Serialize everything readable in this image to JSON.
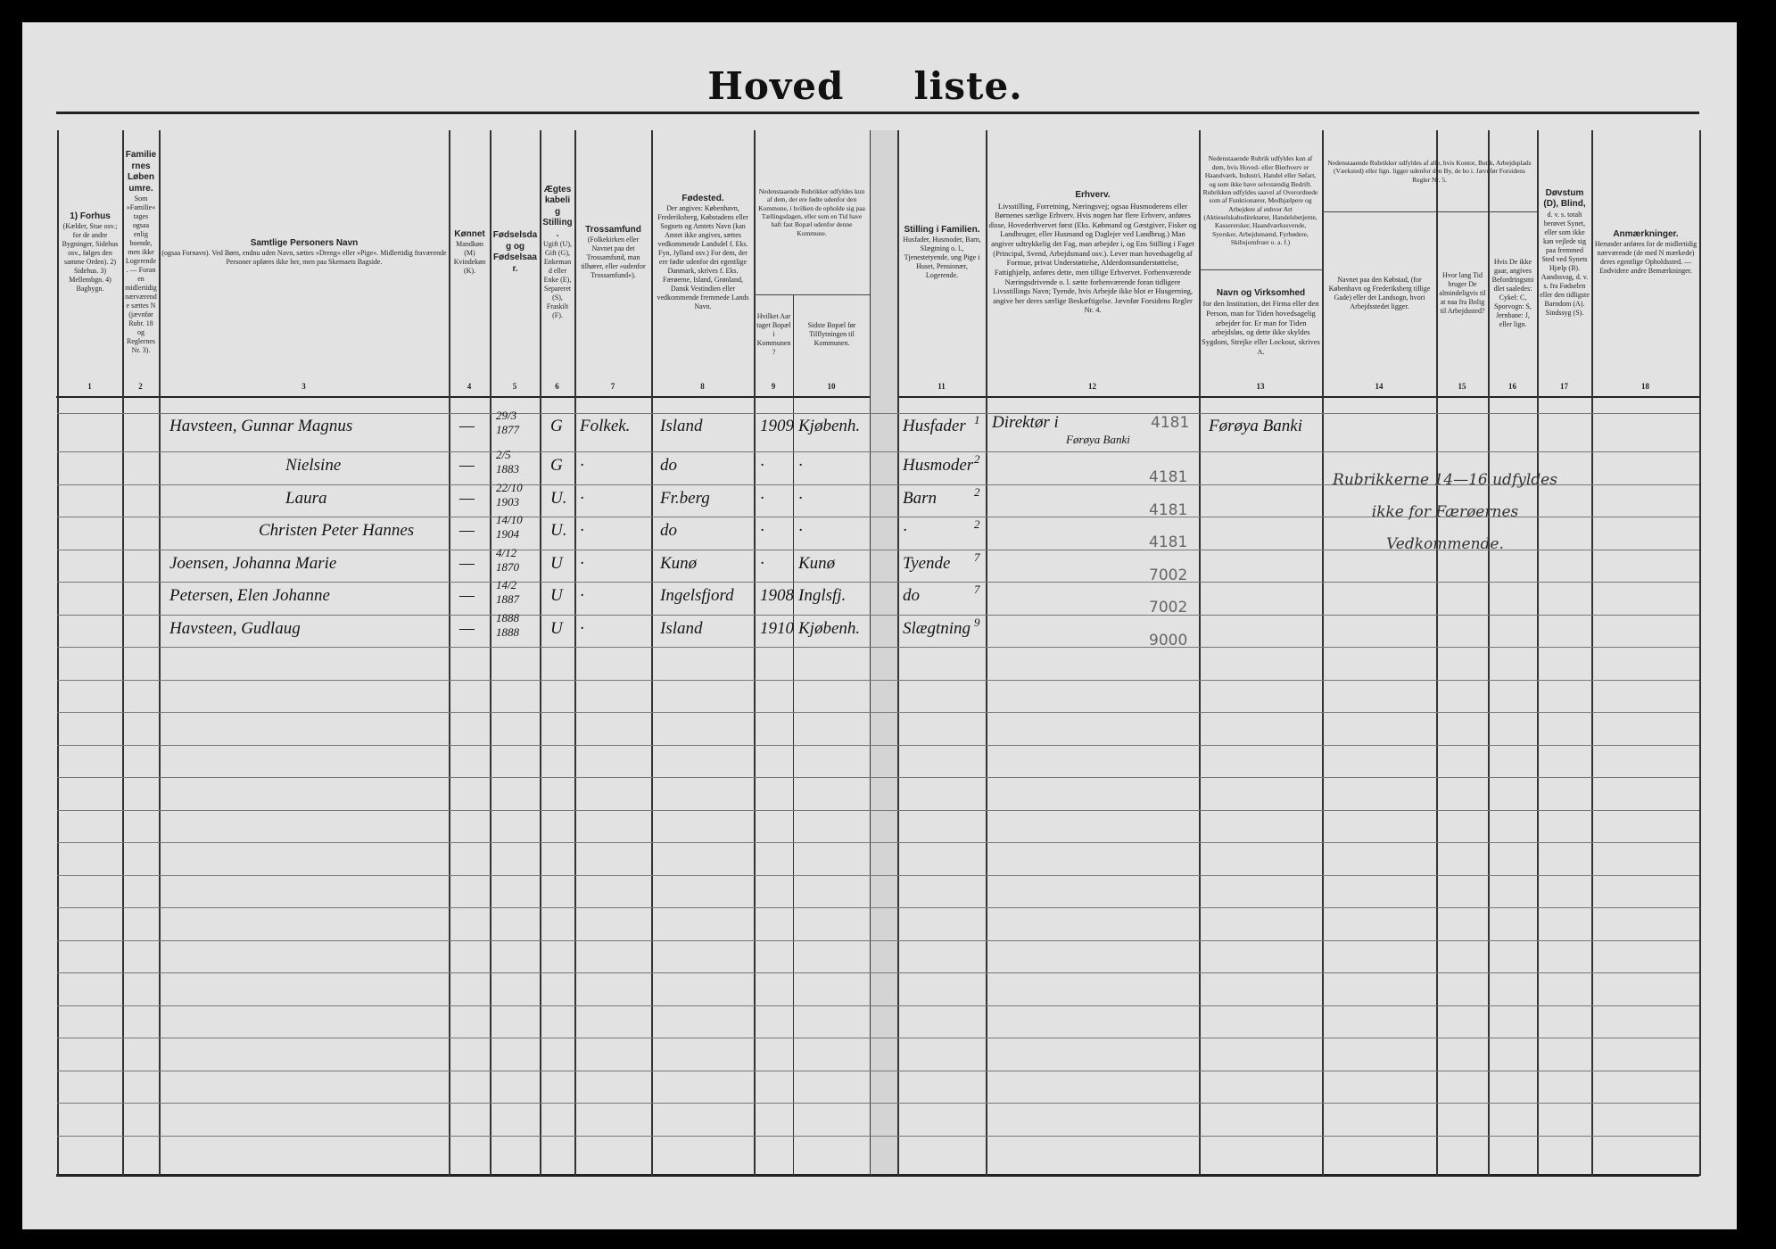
{
  "title": "Hoved     liste.",
  "headers": [
    {
      "n": "1",
      "t": "1) Forhus",
      "s": "(Kælder, Stue osv.; for de andre Bygninger, Sidehus osv., følges den samme Orden). 2) Sidehus. 3) Mellembgn. 4) Bagbygn."
    },
    {
      "n": "2",
      "t": "Familiernes Løbenumre.",
      "s": "Som »Familie« tages ogsaa enlig boende, men ikke Logerende. — Foran en midlertidig nærværende sættes N (jævnfør Rubr. 18 og Reglernes Nr. 3)."
    },
    {
      "n": "3",
      "t": "Samtlige Personers Navn",
      "s": "(ogsaa Fornavn). Ved Børn, endnu uden Navn, sættes »Dreng« eller »Pige«. Midlertidig fraværende Personer opføres ikke her, men paa Skemaets Bagside."
    },
    {
      "n": "4",
      "t": "Kønnet",
      "s": "Mandkøn (M) Kvindekøn (K)."
    },
    {
      "n": "5",
      "t": "Fødselsdag og Fødselsaar.",
      "s": ""
    },
    {
      "n": "6",
      "t": "Ægteskabelig Stilling.",
      "s": "Ugift (U), Gift (G), Enkemand eller Enke (E), Separeret (S), Fraskilt (F)."
    },
    {
      "n": "7",
      "t": "Trossamfund",
      "s": "(Folkekirken eller Navnet paa det Trossamfund, man tilhører, eller »udenfor Trossamfund«)."
    },
    {
      "n": "8",
      "t": "Fødested.",
      "s": "Der angives: København, Frederiksberg, Købstadens eller Sognets og Amtets Navn (kan Amtet ikke angives, sættes vedkommende Landsdel f. Eks. Fyn, Jylland osv.) For dem, der ere fødte udenfor det egentlige Danmark, skrives f. Eks. Færøerne, Island, Grønland, Dansk Vestindien eller vedkommende fremmede Lands Navn."
    },
    {
      "n": "9",
      "t": "",
      "s": "Hvilket Aar taget Bopæl i Kommunen?"
    },
    {
      "n": "10",
      "t": "",
      "s": "Sidste Bopæl før Tilflytningen til Kommunen."
    },
    {
      "n": "11",
      "t": "Stilling i Familien.",
      "s": "Husfader, Husmoder, Barn, Slægtning o. l., Tjenestetyende, ung Pige i Huset, Pensionær, Logerende."
    },
    {
      "n": "12",
      "t": "Erhverv.",
      "s": "Livsstilling, Forretning, Næringsvej; ogsaa Husmoderens eller Børnenes særlige Erhverv. Hvis nogen har flere Erhverv, anføres disse, Hovederhvervet først (Eks. Købmand og Gæstgiver, Fisker og Landbruger, eller Husmand og Daglejer ved Landbrug.) Man angiver udtrykkelig det Fag, man arbejder i, og Ens Stilling i Faget (Principal, Svend, Arbejdsmand osv.). Lever man hovedsagelig af Formue, privat Understøttelse, Alderdomsunderstøttelse, Fattighjælp, anføres dette, men tillige Erhvervet. Forhenværende Næringsdrivende o. l. sætte forhenværende foran tidligere Livsstillings Navn; Tyende, hvis Arbejde ikke blot er Husgerning, angive her deres særlige Beskæftigelse. Jævnfør Forsidens Regler Nr. 4."
    },
    {
      "n": "13",
      "t": "Navn og Virksomhed",
      "s": "for den Institution, det Firma eller den Person, man for Tiden hovedsagelig arbejder for. Er man for Tiden arbejdsløs, og dette ikke skyldes Sygdom, Strejke eller Lockout, skrives A."
    },
    {
      "n": "14",
      "t": "",
      "s": "Navnet paa den Købstad, (for København og Frederiksberg tillige Gade) eller det Landsogn, hvori Arbejdsstedet ligger."
    },
    {
      "n": "15",
      "t": "",
      "s": "Hvor lang Tid bruger De almindeligvis til at naa fra Bolig til Arbejdssted?"
    },
    {
      "n": "16",
      "t": "",
      "s": "Hvis De ikke gaar, angives Befordringsmidlet saaledes: Cykel: C, Sporvogn: S, Jernbane: J, eller lign."
    },
    {
      "n": "17",
      "t": "Døvstum (D), Blind,",
      "s": "d. v. s. totalt berøvet Synet, eller som ikke kan vejlede sig paa fremmed Sted ved Synets Hjælp (B). Aandssvag, d. v. s. fra Fødselen eller den tidligste Barndom (A). Sindssyg (S)."
    },
    {
      "n": "18",
      "t": "Anmærkninger.",
      "s": "Herunder anføres for de midlertidig nærværende (de med N mærkede) deres egentlige Opholdssted. — Endvidere andre Bemærkninger."
    }
  ],
  "notes": {
    "col9_10_top": "Nedenstaaende Rubrikker udfyldes kun af dem, der ere fødte udenfor den Kommune, i hvilken de opholde sig paa Tællingsdagen, eller som en Tid have haft fast Bopæl udenfor denne Kommune.",
    "col13_top": "Nedenstaaende Rubrik udfyldes kun af dem, hvis Hoved- eller Bierhverv er Haandværk, Industri, Handel eller Søfart, og som ikke have selvstændig Bedrift. Rubrikken udfyldes saavel af Overordnede som af Funktionærer, Medhjælpere og Arbejdere af enhver Art (Aktieselskabsdirektører, Handelsbetjente, Kasserersker, Haandværkssvende, Syersker, Arbejdsmænd, Fyrbødere, Skibsjomfruer o. a. f.)",
    "col14_16_top": "Nedenstaaende Rubrikker udfyldes af alle, hvis Kontor, Butik, Arbejdsplads (Værksted) eller lign. ligger udenfor den By, de bo i. Jævnfør Forsidens Regler Nr. 5.",
    "handwritten_note": "Rubrikkerne 14—16 udfyldes ikke for Færøernes Vedkommende."
  },
  "rows": [
    {
      "name": "Havsteen, Gunnar Magnus",
      "sex": "—",
      "bday": "29/3",
      "byear": "1877",
      "status": "G",
      "faith": "Folkek.",
      "birthplace": "Island",
      "year": "1909",
      "prior": "Kjøbenh.",
      "family": "Husfader",
      "fam_code": "1",
      "occupation": "Direktør i",
      "occupation2": "Førøya Banki",
      "occ_code": "4181",
      "firm": "Førøya Banki"
    },
    {
      "name": "Nielsine",
      "sex": "—",
      "bday": "2/5",
      "byear": "1883",
      "status": "G",
      "faith": "·",
      "birthplace": "do",
      "year": "·",
      "prior": "·",
      "family": "Husmoder",
      "fam_code": "2",
      "occ_code": "4181"
    },
    {
      "name": "Laura",
      "sex": "—",
      "bday": "22/10",
      "byear": "1903",
      "status": "U.",
      "faith": "·",
      "birthplace": "Fr.berg",
      "year": "·",
      "prior": "·",
      "family": "Barn",
      "fam_code": "2",
      "occ_code": "4181"
    },
    {
      "name": "Christen Peter Hannes",
      "sex": "—",
      "bday": "14/10",
      "byear": "1904",
      "status": "U.",
      "faith": "·",
      "birthplace": "do",
      "year": "·",
      "prior": "·",
      "family": "·",
      "fam_code": "2",
      "occ_code": "4181"
    },
    {
      "name": "Joensen, Johanna Marie",
      "sex": "—",
      "bday": "4/12",
      "byear": "1870",
      "status": "U",
      "faith": "·",
      "birthplace": "Kunø",
      "year": "·",
      "prior": "Kunø",
      "family": "Tyende",
      "fam_code": "7",
      "occ_code": "7002"
    },
    {
      "name": "Petersen, Elen Johanne",
      "sex": "—",
      "bday": "14/2",
      "byear": "1887",
      "status": "U",
      "faith": "·",
      "birthplace": "Ingelsfjord",
      "year": "1908",
      "prior": "Inglsfj.",
      "family": "do",
      "fam_code": "7",
      "occ_code": "7002"
    },
    {
      "name": "Havsteen, Gudlaug",
      "sex": "—",
      "bday": "1888",
      "byear": "1888",
      "status": "U",
      "faith": "·",
      "birthplace": "Island",
      "year": "1910",
      "prior": "Kjøbenh.",
      "family": "Slægtning",
      "fam_code": "9",
      "occ_code": "9000"
    }
  ]
}
